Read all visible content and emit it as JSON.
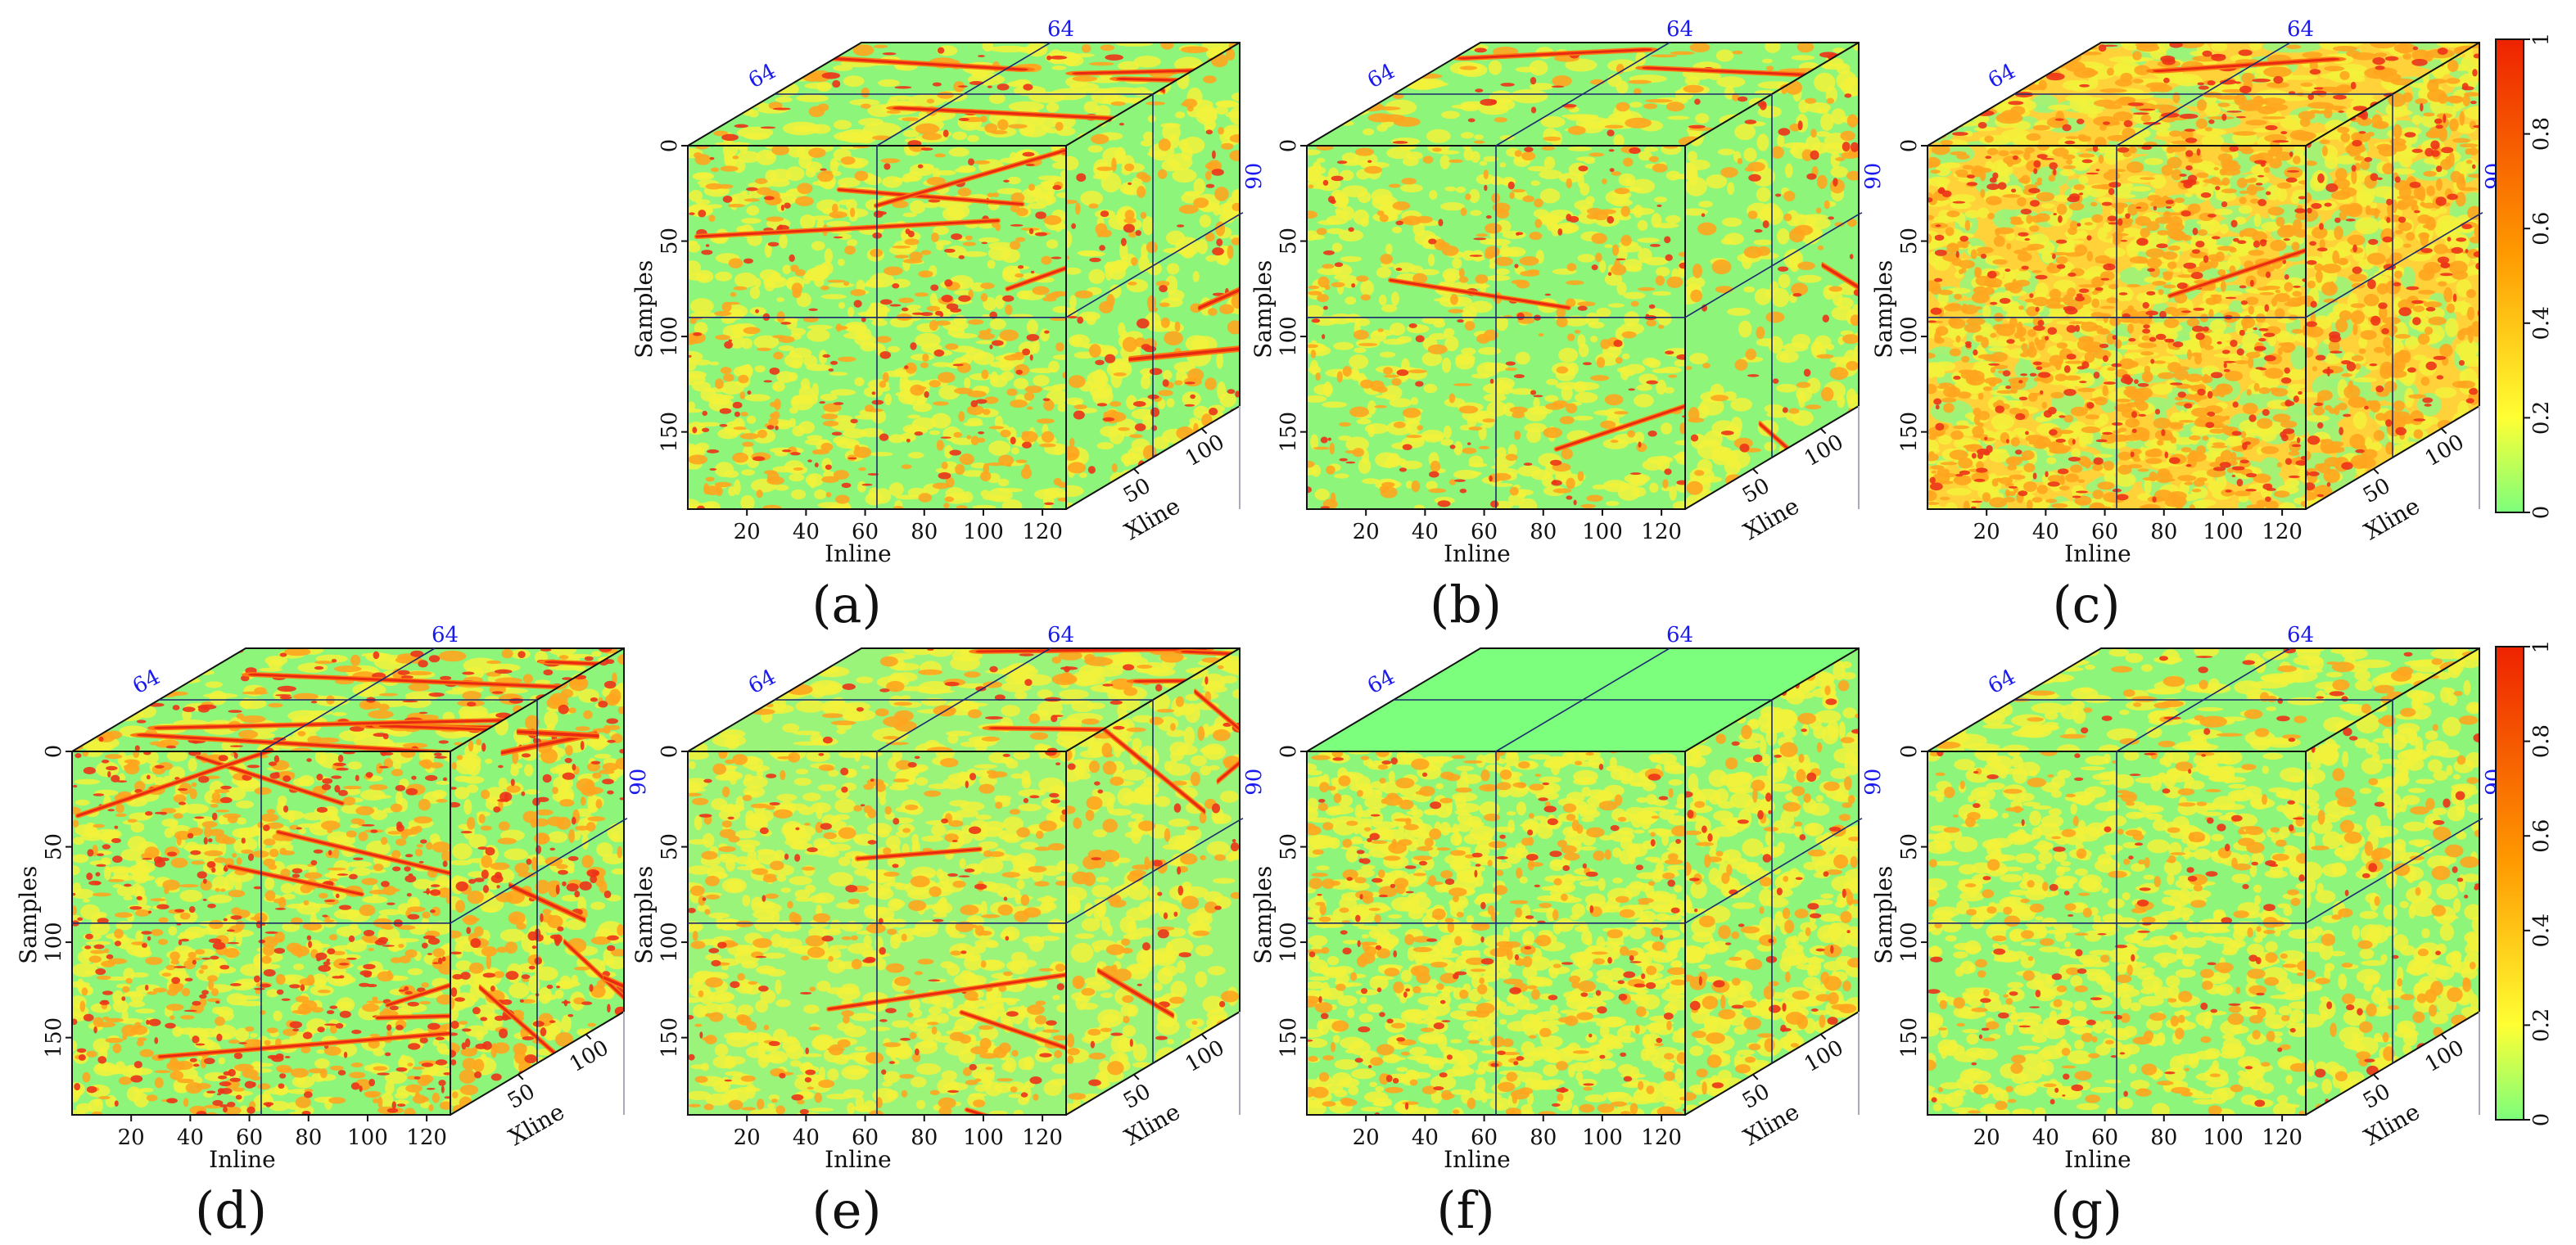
{
  "figure": {
    "panels": [
      {
        "caption": "(a)",
        "label": "panel-a",
        "style": "a"
      },
      {
        "caption": "(b)",
        "label": "panel-b",
        "style": "b"
      },
      {
        "caption": "(c)",
        "label": "panel-c",
        "style": "c"
      },
      {
        "caption": "(d)",
        "label": "panel-d",
        "style": "d"
      },
      {
        "caption": "(e)",
        "label": "panel-e",
        "style": "e"
      },
      {
        "caption": "(f)",
        "label": "panel-f",
        "style": "f"
      },
      {
        "caption": "(g)",
        "label": "panel-g",
        "style": "g"
      }
    ],
    "axes": {
      "samples_label": "Samples",
      "inline_label": "Inline",
      "xline_label": "Xline",
      "samples_ticks": [
        0,
        50,
        100,
        150
      ],
      "inline_ticks": [
        20,
        40,
        60,
        80,
        100,
        120
      ],
      "xline_ticks": [
        50,
        100
      ],
      "samples_max": 200,
      "inline_max": 128,
      "xline_max": 128
    },
    "slices": {
      "inline_slice": 64,
      "xline_slice": 64,
      "sample_slice": 90,
      "inline_slice_label": "64",
      "xline_slice_label": "64",
      "sample_slice_label": "90"
    },
    "colorbar": {
      "ticks": [
        "0",
        "0.2",
        "0.4",
        "0.6",
        "0.8",
        "1"
      ],
      "colors": [
        "#7cff7c",
        "#ffff33",
        "#ff9900",
        "#ee2200"
      ]
    }
  }
}
